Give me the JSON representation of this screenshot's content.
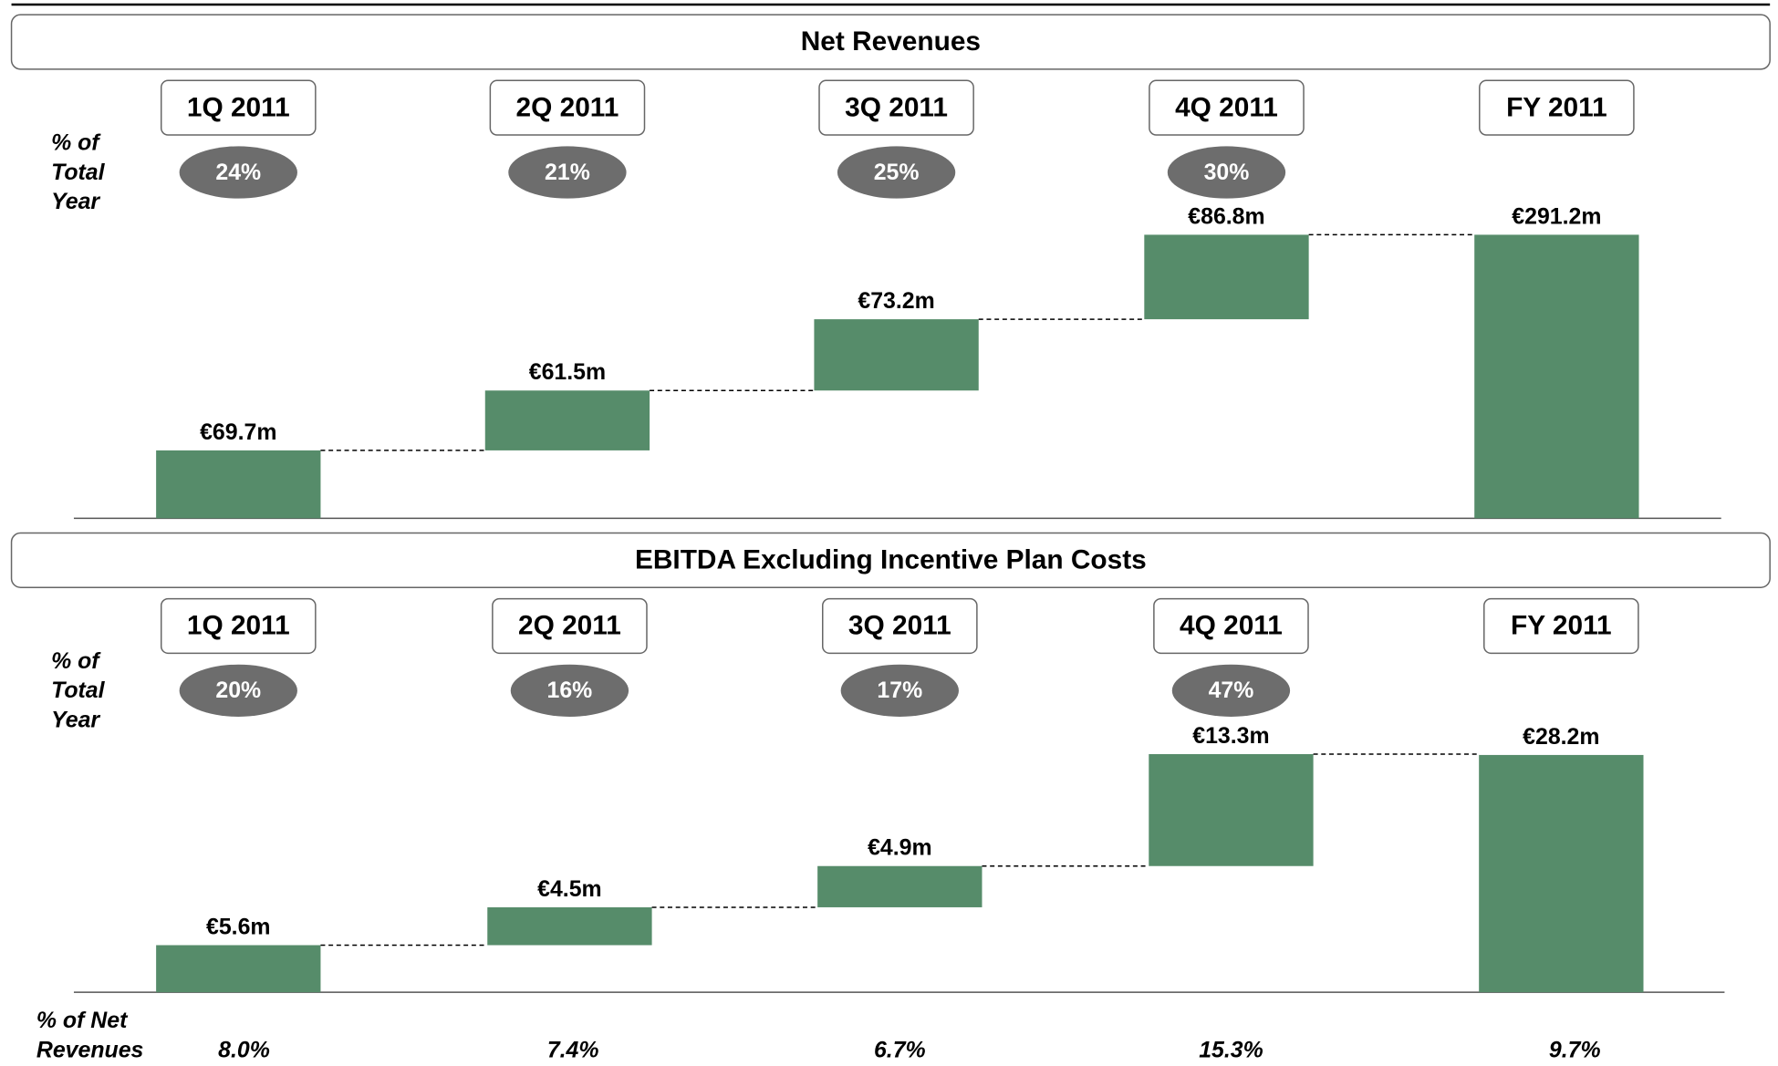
{
  "chart_data": [
    {
      "type": "waterfall",
      "title": "Net Revenues",
      "categories": [
        "1Q 2011",
        "2Q 2011",
        "3Q 2011",
        "4Q 2011",
        "FY 2011"
      ],
      "values": [
        69.7,
        61.5,
        73.2,
        86.8,
        291.2
      ],
      "value_labels": [
        "€69.7m",
        "€61.5m",
        "€73.2m",
        "€86.8m",
        "€291.2m"
      ],
      "share_title": [
        "% of",
        "Total",
        "Year"
      ],
      "shares": [
        24,
        21,
        25,
        30
      ],
      "share_labels": [
        "24%",
        "21%",
        "25%",
        "30%"
      ],
      "color": "#568c6a"
    },
    {
      "type": "waterfall",
      "title": "EBITDA Excluding Incentive Plan Costs",
      "categories": [
        "1Q 2011",
        "2Q 2011",
        "3Q 2011",
        "4Q 2011",
        "FY 2011"
      ],
      "values": [
        5.6,
        4.5,
        4.9,
        13.3,
        28.2
      ],
      "value_labels": [
        "€5.6m",
        "€4.5m",
        "€4.9m",
        "€13.3m",
        "€28.2m"
      ],
      "share_title": [
        "% of",
        "Total",
        "Year"
      ],
      "shares": [
        20,
        16,
        17,
        47
      ],
      "share_labels": [
        "20%",
        "16%",
        "17%",
        "47%"
      ],
      "footer_title": [
        "% of Net",
        "Revenues"
      ],
      "margins": [
        8.0,
        7.4,
        6.7,
        15.3,
        9.7
      ],
      "margin_labels": [
        "8.0%",
        "7.4%",
        "6.7%",
        "15.3%",
        "9.7%"
      ],
      "color": "#568c6a"
    }
  ]
}
